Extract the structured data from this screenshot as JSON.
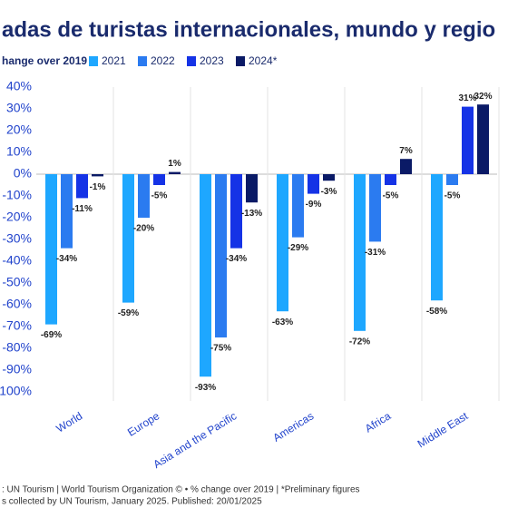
{
  "chart_data": {
    "type": "bar",
    "title": "adas de turistas internacionales, mundo y regio",
    "legend_title": "hange over 2019",
    "categories": [
      "World",
      "Europe",
      "Asia and the Pacific",
      "Americas",
      "Africa",
      "Middle East"
    ],
    "series": [
      {
        "name": "2021",
        "color": "#1ea7ff",
        "values": [
          -69,
          -59,
          -93,
          -63,
          -72,
          -58
        ],
        "value_labels": [
          "-69%",
          "-59%",
          "-93%",
          "-63%",
          "-72%",
          "-58%"
        ]
      },
      {
        "name": "2022",
        "color": "#2b7bf0",
        "values": [
          -34,
          -20,
          -75,
          -29,
          -31,
          -5
        ],
        "value_labels": [
          "-34%",
          "-20%",
          "-75%",
          "-29%",
          "-31%",
          "-5%"
        ]
      },
      {
        "name": "2023",
        "color": "#1533e6",
        "values": [
          -11,
          -5,
          -34,
          -9,
          -5,
          31
        ],
        "value_labels": [
          "-11%",
          "-5%",
          "-34%",
          "-9%",
          "-5%",
          "31%"
        ]
      },
      {
        "name": "2024*",
        "color": "#0a1a66",
        "values": [
          -1,
          1,
          -13,
          -3,
          7,
          32
        ],
        "value_labels": [
          "-1%",
          "1%",
          "-13%",
          "-3%",
          "7%",
          "32%"
        ]
      }
    ],
    "ylim": [
      -100,
      40
    ],
    "yticks": [
      {
        "value": 40,
        "label": "40%"
      },
      {
        "value": 30,
        "label": "30%"
      },
      {
        "value": 20,
        "label": "20%"
      },
      {
        "value": 10,
        "label": "10%"
      },
      {
        "value": 0,
        "label": "0%"
      },
      {
        "value": -10,
        "label": "-10%"
      },
      {
        "value": -20,
        "label": "-20%"
      },
      {
        "value": -30,
        "label": "-30%"
      },
      {
        "value": -40,
        "label": "-40%"
      },
      {
        "value": -50,
        "label": "-50%"
      },
      {
        "value": -60,
        "label": "-60%"
      },
      {
        "value": -70,
        "label": "-70%"
      },
      {
        "value": -80,
        "label": "-80%"
      },
      {
        "value": -90,
        "label": "-90%"
      },
      {
        "value": -100,
        "label": "-100%"
      }
    ],
    "footer": [
      ": UN Tourism | World Tourism Organization © • % change over 2019 | *Preliminary figures",
      "s collected by UN Tourism, January 2025. Published: 20/01/2025"
    ]
  }
}
